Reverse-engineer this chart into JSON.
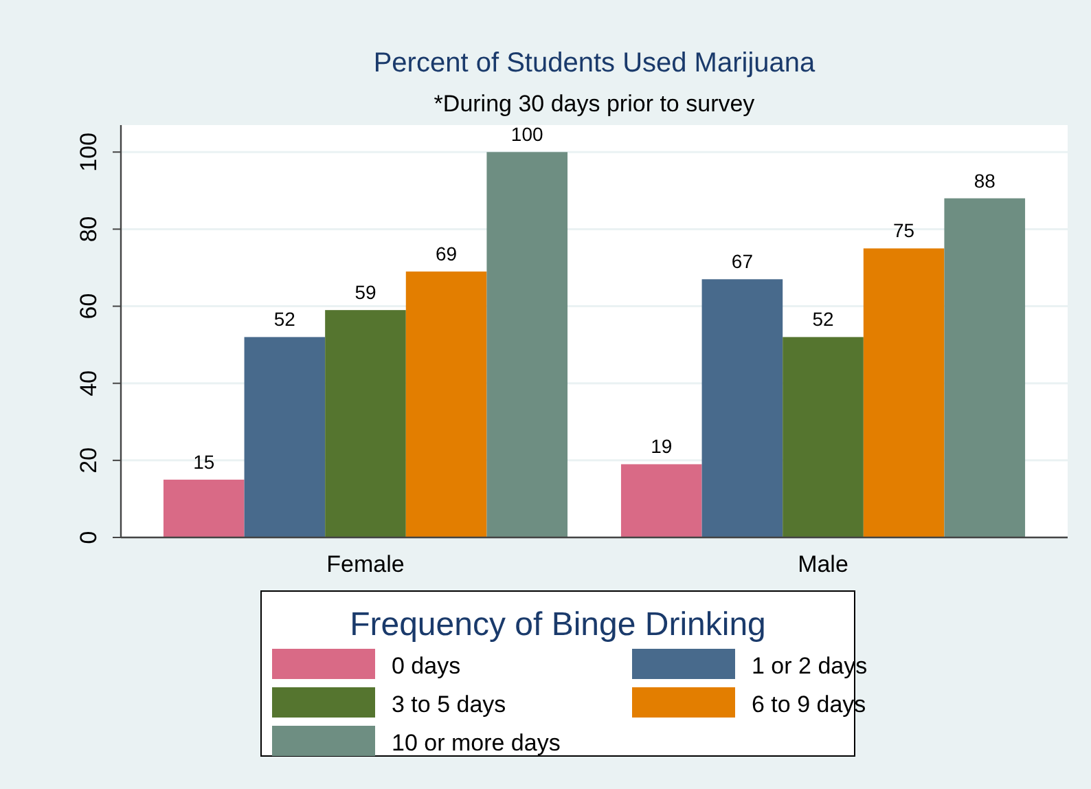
{
  "chart_data": {
    "type": "bar",
    "title": "Percent of Students Used Marijuana",
    "subtitle": "*During 30 days prior to survey",
    "legend_title": "Frequency of Binge Drinking",
    "categories": [
      "Female",
      "Male"
    ],
    "series": [
      {
        "name": "0 days",
        "color": "#d96a86",
        "values": [
          15,
          19
        ]
      },
      {
        "name": "1 or 2 days",
        "color": "#486a8c",
        "values": [
          52,
          67
        ]
      },
      {
        "name": "3 to 5 days",
        "color": "#55752f",
        "values": [
          59,
          52
        ]
      },
      {
        "name": "6 to 9 days",
        "color": "#e37e00",
        "values": [
          69,
          75
        ]
      },
      {
        "name": "10 or more days",
        "color": "#6e8e82",
        "values": [
          100,
          88
        ]
      }
    ],
    "ylim": [
      0,
      107
    ],
    "yticks": [
      0,
      20,
      40,
      60,
      80,
      100
    ],
    "grid": "y",
    "data_labels": true,
    "legend": "bottom"
  }
}
